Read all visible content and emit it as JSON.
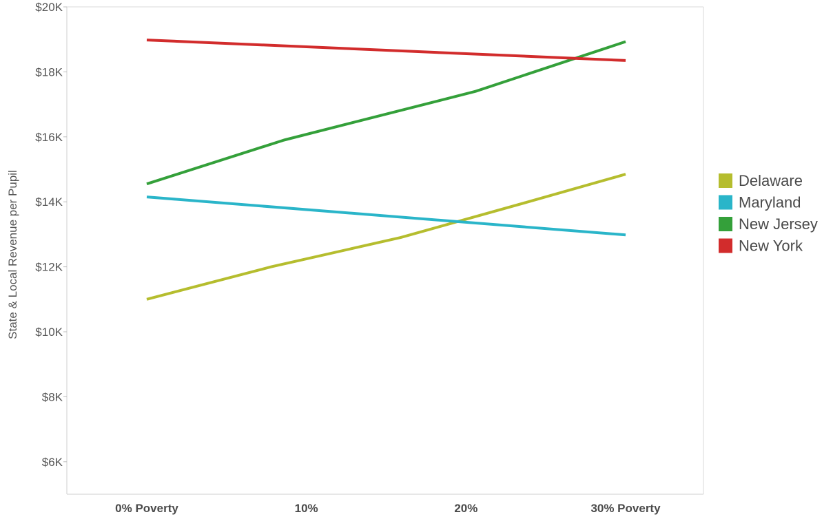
{
  "chart_data": {
    "type": "line",
    "title": "",
    "xlabel": "",
    "ylabel": "State & Local Revenue per Pupil",
    "categories": [
      "0% Poverty",
      "10%",
      "20%",
      "30% Poverty"
    ],
    "x": [
      0,
      10,
      20,
      30
    ],
    "ylim": [
      5000,
      20000
    ],
    "yticks": [
      6000,
      8000,
      10000,
      12000,
      14000,
      16000,
      18000,
      20000
    ],
    "ytick_labels": [
      "$6K",
      "$8K",
      "$10K",
      "$12K",
      "$14K",
      "$16K",
      "$18K",
      "$20K"
    ],
    "grid": false,
    "legend_position": "right",
    "series": [
      {
        "name": "Delaware",
        "color": "#b5bd2e",
        "x": [
          0,
          7.8,
          15.9,
          23.9,
          30
        ],
        "values": [
          11000,
          12000,
          12900,
          14000,
          14850
        ]
      },
      {
        "name": "Maryland",
        "color": "#2ab5c9",
        "x": [
          0,
          30
        ],
        "values": [
          14150,
          12980
        ]
      },
      {
        "name": "New Jersey",
        "color": "#34a03a",
        "x": [
          0,
          8.6,
          20.6,
          30
        ],
        "values": [
          14550,
          15900,
          17400,
          18930
        ]
      },
      {
        "name": "New York",
        "color": "#d22c2c",
        "x": [
          0,
          30
        ],
        "values": [
          18980,
          18350
        ]
      }
    ]
  }
}
